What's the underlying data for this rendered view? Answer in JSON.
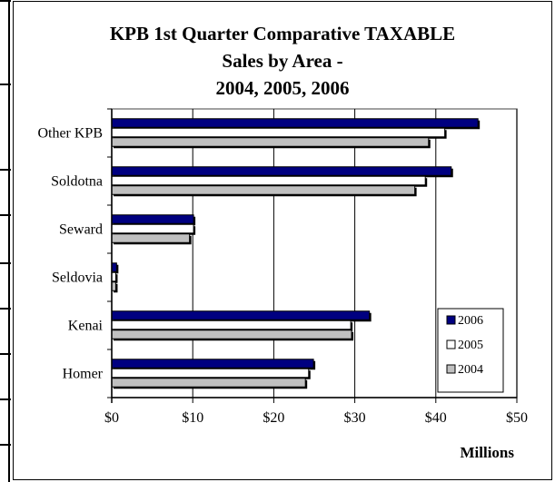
{
  "chart_data": {
    "type": "bar",
    "orientation": "horizontal",
    "title_lines": [
      "KPB 1st Quarter Comparative TAXABLE",
      "Sales by Area -",
      "2004, 2005, 2006"
    ],
    "categories": [
      "Other KPB",
      "Soldotna",
      "Seward",
      "Seldovia",
      "Kenai",
      "Homer"
    ],
    "series": [
      {
        "name": "2006",
        "color": "#000080",
        "values": [
          45.2,
          41.9,
          10.1,
          0.6,
          31.8,
          24.9
        ]
      },
      {
        "name": "2005",
        "color": "#ffffff",
        "values": [
          41.1,
          38.7,
          10.1,
          0.5,
          29.5,
          24.3
        ]
      },
      {
        "name": "2004",
        "color": "#c0c0c0",
        "values": [
          39.1,
          37.4,
          9.6,
          0.5,
          29.6,
          23.9
        ]
      }
    ],
    "x_ticks": [
      "$0",
      "$10",
      "$20",
      "$30",
      "$40",
      "$50"
    ],
    "xlim": [
      0,
      50
    ],
    "xlabel": "Millions",
    "ylabel": "",
    "grid": "vertical",
    "legend_position": "bottom-right"
  }
}
